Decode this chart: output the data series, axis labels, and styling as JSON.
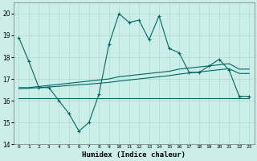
{
  "x": [
    0,
    1,
    2,
    3,
    4,
    5,
    6,
    7,
    8,
    9,
    10,
    11,
    12,
    13,
    14,
    15,
    16,
    17,
    18,
    19,
    20,
    21,
    22,
    23
  ],
  "humidex": [
    18.9,
    17.8,
    16.6,
    16.6,
    16.0,
    15.4,
    14.6,
    15.0,
    16.3,
    18.6,
    20.0,
    19.6,
    19.7,
    18.8,
    19.9,
    18.4,
    18.2,
    17.3,
    17.3,
    17.6,
    17.9,
    17.4,
    16.2,
    16.2
  ],
  "line_upper": [
    16.6,
    16.6,
    16.65,
    16.7,
    16.75,
    16.8,
    16.85,
    16.9,
    16.95,
    17.0,
    17.1,
    17.15,
    17.2,
    17.25,
    17.3,
    17.35,
    17.45,
    17.5,
    17.55,
    17.6,
    17.65,
    17.7,
    17.45,
    17.45
  ],
  "line_mid": [
    16.55,
    16.57,
    16.6,
    16.63,
    16.66,
    16.7,
    16.73,
    16.76,
    16.8,
    16.84,
    16.9,
    16.95,
    17.0,
    17.05,
    17.1,
    17.15,
    17.22,
    17.27,
    17.32,
    17.37,
    17.42,
    17.47,
    17.25,
    17.25
  ],
  "line_lower": [
    16.1,
    16.1,
    16.1,
    16.1,
    16.1,
    16.1,
    16.1,
    16.1,
    16.1,
    16.1,
    16.1,
    16.1,
    16.1,
    16.1,
    16.1,
    16.1,
    16.1,
    16.1,
    16.1,
    16.1,
    16.1,
    16.1,
    16.1,
    16.1
  ],
  "bg_color": "#cceee8",
  "grid_color": "#aaddcc",
  "line_color": "#006666",
  "ylim": [
    14.0,
    20.5
  ],
  "xlim": [
    -0.5,
    23.5
  ],
  "yticks": [
    14,
    15,
    16,
    17,
    18,
    19,
    20
  ],
  "xlabel": "Humidex (Indice chaleur)"
}
